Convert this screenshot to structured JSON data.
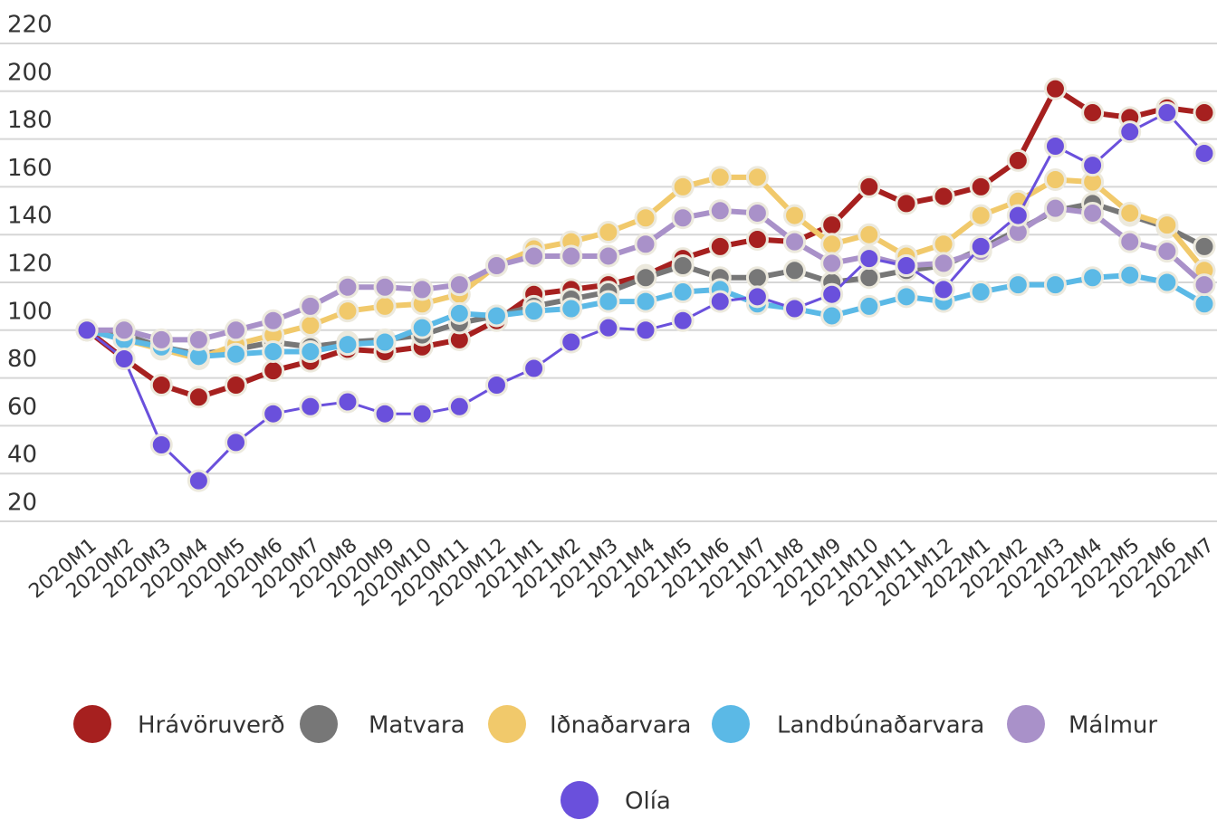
{
  "chart_data": {
    "type": "line",
    "categories": [
      "2020M1",
      "2020M2",
      "2020M3",
      "2020M4",
      "2020M5",
      "2020M6",
      "2020M7",
      "2020M8",
      "2020M9",
      "2020M10",
      "2020M11",
      "2020M12",
      "2021M1",
      "2021M2",
      "2021M3",
      "2021M4",
      "2021M5",
      "2021M6",
      "2021M7",
      "2021M8",
      "2021M9",
      "2021M10",
      "2021M11",
      "2021M12",
      "2022M1",
      "2022M2",
      "2022M3",
      "2022M4",
      "2022M5",
      "2022M6",
      "2022M7"
    ],
    "series": [
      {
        "name": "Hrávöruverð",
        "color": "#a6201f",
        "values": [
          100,
          88,
          77,
          72,
          77,
          83,
          87,
          92,
          91,
          93,
          96,
          104,
          115,
          117,
          119,
          123,
          130,
          135,
          138,
          137,
          144,
          160,
          153,
          156,
          160,
          171,
          201,
          191,
          189,
          193,
          191
        ]
      },
      {
        "name": "Matvara",
        "color": "#777777",
        "values": [
          100,
          98,
          93,
          90,
          92,
          95,
          93,
          95,
          96,
          98,
          103,
          106,
          110,
          113,
          116,
          122,
          127,
          122,
          122,
          125,
          120,
          122,
          125,
          127,
          134,
          142,
          150,
          153,
          148,
          143,
          135
        ]
      },
      {
        "name": "Iðnaðarvara",
        "color": "#f1c96b",
        "values": [
          100,
          96,
          92,
          88,
          94,
          98,
          102,
          108,
          110,
          111,
          115,
          127,
          134,
          137,
          141,
          147,
          160,
          164,
          164,
          148,
          136,
          140,
          131,
          136,
          148,
          154,
          163,
          162,
          149,
          144,
          125
        ]
      },
      {
        "name": "Landbúnaðarvara",
        "color": "#5bb9e6",
        "values": [
          100,
          96,
          93,
          89,
          90,
          91,
          91,
          94,
          95,
          101,
          107,
          106,
          108,
          109,
          112,
          112,
          116,
          117,
          111,
          109,
          106,
          110,
          114,
          112,
          116,
          119,
          119,
          122,
          123,
          120,
          111
        ]
      },
      {
        "name": "Málmur",
        "color": "#a991c9",
        "values": [
          100,
          100,
          96,
          96,
          100,
          104,
          110,
          118,
          118,
          117,
          119,
          127,
          131,
          131,
          131,
          136,
          147,
          150,
          149,
          137,
          128,
          131,
          127,
          128,
          133,
          141,
          151,
          149,
          137,
          133,
          119
        ]
      },
      {
        "name": "Olía",
        "color": "#6a50dc",
        "values": [
          100,
          88,
          52,
          37,
          53,
          65,
          68,
          70,
          65,
          65,
          68,
          77,
          84,
          95,
          101,
          100,
          104,
          112,
          114,
          109,
          115,
          130,
          127,
          117,
          135,
          148,
          177,
          169,
          183,
          191,
          174
        ]
      }
    ],
    "ylim": [
      20,
      220
    ],
    "yticks": [
      20,
      40,
      60,
      80,
      100,
      120,
      140,
      160,
      180,
      200,
      220
    ],
    "grid": true
  }
}
